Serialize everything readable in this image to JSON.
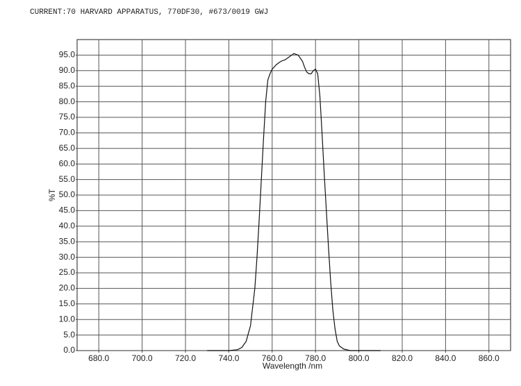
{
  "chart_data": {
    "type": "line",
    "title": "CURRENT:70 HARVARD APPARATUS, 770DF30, #673/0019  GWJ",
    "x_label": "Wavelength /nm",
    "y_label": "%T",
    "color": "#111111",
    "grid": true,
    "xlim": [
      670,
      870
    ],
    "ylim": [
      0,
      100
    ],
    "xticks": [
      {
        "value": 680,
        "label": "680.0"
      },
      {
        "value": 700,
        "label": "700.0"
      },
      {
        "value": 720,
        "label": "720.0"
      },
      {
        "value": 740,
        "label": "740.0"
      },
      {
        "value": 760,
        "label": "760.0"
      },
      {
        "value": 780,
        "label": "780.0"
      },
      {
        "value": 800,
        "label": "800.0"
      },
      {
        "value": 820,
        "label": "820.0"
      },
      {
        "value": 840,
        "label": "840.0"
      },
      {
        "value": 860,
        "label": "860.0"
      }
    ],
    "yticks": [
      {
        "value": 0,
        "label": "0.0"
      },
      {
        "value": 5,
        "label": "5.0"
      },
      {
        "value": 10,
        "label": "10.0"
      },
      {
        "value": 15,
        "label": "15.0"
      },
      {
        "value": 20,
        "label": "20.0"
      },
      {
        "value": 25,
        "label": "25.0"
      },
      {
        "value": 30,
        "label": "30.0"
      },
      {
        "value": 35,
        "label": "35.0"
      },
      {
        "value": 40,
        "label": "40.0"
      },
      {
        "value": 45,
        "label": "45.0"
      },
      {
        "value": 50,
        "label": "50.0"
      },
      {
        "value": 55,
        "label": "55.0"
      },
      {
        "value": 60,
        "label": "60.0"
      },
      {
        "value": 65,
        "label": "65.0"
      },
      {
        "value": 70,
        "label": "70.0"
      },
      {
        "value": 75,
        "label": "75.0"
      },
      {
        "value": 80,
        "label": "80.0"
      },
      {
        "value": 85,
        "label": "85.0"
      },
      {
        "value": 90,
        "label": "90.0"
      },
      {
        "value": 95,
        "label": "95.0"
      }
    ],
    "x": [
      730,
      740,
      744,
      746,
      748,
      750,
      752,
      753,
      754,
      755,
      756,
      757,
      758,
      759,
      760,
      762,
      764,
      766,
      768,
      770,
      772,
      774,
      775,
      776,
      777,
      778,
      779,
      780,
      781,
      782,
      783,
      784,
      785,
      786,
      787,
      788,
      789,
      790,
      791,
      793,
      796,
      800,
      810
    ],
    "values": [
      0,
      0,
      0.3,
      1,
      3,
      8,
      20,
      30,
      42,
      55,
      68,
      80,
      87,
      89,
      90.5,
      92,
      93,
      93.5,
      94.5,
      95.5,
      95,
      93,
      91,
      89.5,
      89,
      89,
      90,
      90.5,
      89,
      82,
      70,
      57,
      45,
      33,
      22,
      13,
      7,
      3,
      1.5,
      0.5,
      0,
      0,
      0
    ]
  }
}
